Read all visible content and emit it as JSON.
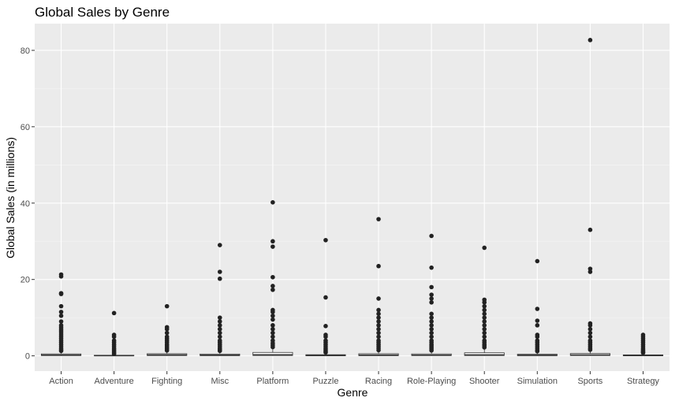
{
  "chart_data": {
    "type": "box",
    "title": "Global Sales by Genre",
    "xlabel": "Genre",
    "ylabel": "Global Sales (in millions)",
    "ylim": [
      -4,
      87
    ],
    "yticks": [
      0,
      20,
      40,
      60,
      80
    ],
    "ytick_labels": [
      "0",
      "20",
      "40",
      "60",
      "80"
    ],
    "categories": [
      "Action",
      "Adventure",
      "Fighting",
      "Misc",
      "Platform",
      "Puzzle",
      "Racing",
      "Role-Playing",
      "Shooter",
      "Simulation",
      "Sports",
      "Strategy"
    ],
    "boxes": [
      {
        "q1": 0.07,
        "median": 0.19,
        "q3": 0.5,
        "whisker_low": 0.01,
        "whisker_high": 1.1,
        "outliers": [
          1.3,
          1.6,
          2.0,
          2.5,
          3.0,
          3.5,
          4.0,
          4.5,
          5.0,
          5.5,
          6.0,
          6.5,
          7.0,
          7.5,
          8.0,
          9.0,
          10.5,
          11.5,
          13.0,
          16.2,
          16.4,
          20.8,
          21.3
        ]
      },
      {
        "q1": 0.02,
        "median": 0.06,
        "q3": 0.16,
        "whisker_low": 0.01,
        "whisker_high": 0.36,
        "outliers": [
          0.5,
          0.8,
          1.2,
          1.6,
          2.0,
          2.5,
          3.0,
          3.5,
          4.0,
          5.0,
          5.5,
          11.2
        ]
      },
      {
        "q1": 0.08,
        "median": 0.21,
        "q3": 0.55,
        "whisker_low": 0.01,
        "whisker_high": 1.2,
        "outliers": [
          1.4,
          1.8,
          2.2,
          2.6,
          3.0,
          3.5,
          4.0,
          4.5,
          5.0,
          6.0,
          7.0,
          7.5,
          13.0
        ]
      },
      {
        "q1": 0.06,
        "median": 0.16,
        "q3": 0.47,
        "whisker_low": 0.01,
        "whisker_high": 1.1,
        "outliers": [
          1.3,
          1.6,
          2.0,
          2.5,
          3.0,
          3.5,
          4.0,
          5.0,
          6.0,
          7.0,
          8.0,
          9.0,
          10.0,
          20.2,
          22.0,
          29.0
        ]
      },
      {
        "q1": 0.09,
        "median": 0.28,
        "q3": 0.9,
        "whisker_low": 0.01,
        "whisker_high": 2.0,
        "outliers": [
          2.3,
          2.8,
          3.3,
          4.0,
          5.0,
          6.0,
          7.0,
          8.0,
          9.5,
          10.5,
          11.5,
          12.0,
          17.3,
          18.3,
          20.6,
          28.6,
          30.0,
          40.2
        ]
      },
      {
        "q1": 0.02,
        "median": 0.11,
        "q3": 0.3,
        "whisker_low": 0.01,
        "whisker_high": 0.7,
        "outliers": [
          0.9,
          1.2,
          1.6,
          2.0,
          2.5,
          3.0,
          3.5,
          4.0,
          5.0,
          5.5,
          7.8,
          15.3,
          30.3
        ]
      },
      {
        "q1": 0.05,
        "median": 0.19,
        "q3": 0.55,
        "whisker_low": 0.01,
        "whisker_high": 1.3,
        "outliers": [
          1.5,
          2.0,
          2.5,
          3.0,
          3.5,
          4.0,
          5.0,
          6.0,
          7.0,
          8.0,
          9.0,
          10.0,
          11.0,
          12.0,
          15.0,
          23.5,
          35.8
        ]
      },
      {
        "q1": 0.07,
        "median": 0.18,
        "q3": 0.5,
        "whisker_low": 0.01,
        "whisker_high": 1.2,
        "outliers": [
          1.4,
          1.8,
          2.2,
          2.6,
          3.0,
          3.5,
          4.0,
          5.0,
          6.0,
          7.0,
          8.0,
          9.0,
          10.0,
          11.0,
          14.0,
          15.0,
          16.0,
          18.0,
          23.1,
          31.4
        ]
      },
      {
        "q1": 0.08,
        "median": 0.24,
        "q3": 0.8,
        "whisker_low": 0.01,
        "whisker_high": 1.9,
        "outliers": [
          2.2,
          2.6,
          3.0,
          3.5,
          4.0,
          5.0,
          6.0,
          7.0,
          8.0,
          9.0,
          10.0,
          11.0,
          12.0,
          13.0,
          14.0,
          14.7,
          28.3
        ]
      },
      {
        "q1": 0.05,
        "median": 0.15,
        "q3": 0.42,
        "whisker_low": 0.01,
        "whisker_high": 1.0,
        "outliers": [
          1.2,
          1.5,
          2.0,
          2.5,
          3.0,
          3.5,
          4.0,
          5.0,
          5.5,
          8.0,
          9.2,
          12.3,
          24.8
        ]
      },
      {
        "q1": 0.09,
        "median": 0.22,
        "q3": 0.6,
        "whisker_low": 0.01,
        "whisker_high": 1.4,
        "outliers": [
          1.6,
          2.0,
          2.5,
          3.0,
          3.5,
          4.0,
          5.0,
          6.0,
          7.0,
          8.0,
          8.5,
          22.0,
          22.8,
          33.0,
          82.7
        ]
      },
      {
        "q1": 0.04,
        "median": 0.09,
        "q3": 0.26,
        "whisker_low": 0.01,
        "whisker_high": 0.6,
        "outliers": [
          0.8,
          1.0,
          1.3,
          1.6,
          2.0,
          2.5,
          3.0,
          3.5,
          4.0,
          4.5,
          5.0,
          5.5
        ]
      }
    ],
    "colors": {
      "panel_bg": "#ebebeb",
      "grid_major": "#ffffff",
      "grid_minor": "#f5f5f5",
      "box_fill": "#ffffff",
      "box_line": "#333333",
      "point": "#222222"
    },
    "grid": true,
    "legend": "none"
  }
}
